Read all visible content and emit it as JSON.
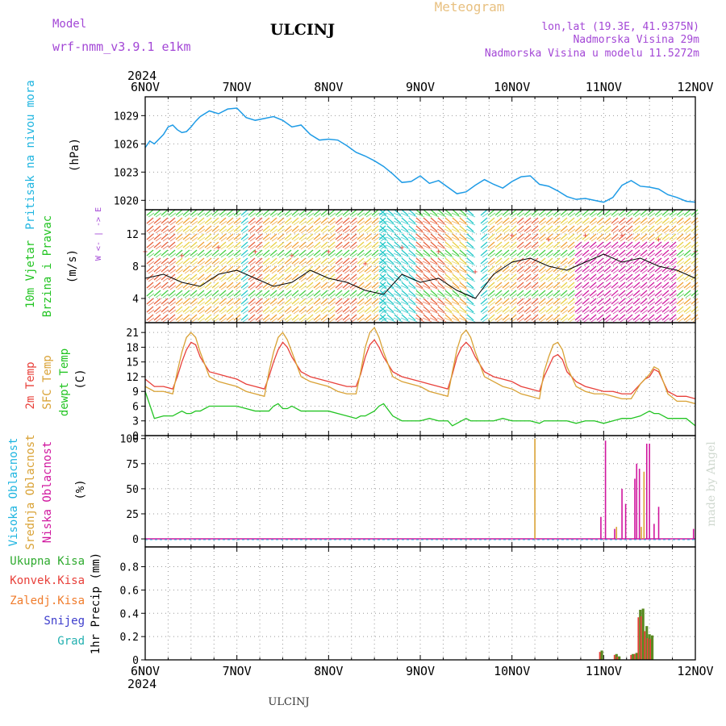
{
  "header": {
    "model_label": "Model",
    "model_name": "wrf-nmm_v3.9.1  e1km",
    "station": "ULCINJ",
    "product": "Meteogram",
    "coords": "lon,lat (19.3E, 41.9375N)",
    "elevation": "Nadmorska Visina 29m",
    "model_elevation": "Nadmorska Visina u modelu 11.5272m",
    "footer_station": "ULCINJ",
    "credit": "made by Angel"
  },
  "colors": {
    "pressure": "#1e9be6",
    "temp2m": "#e8403a",
    "sfc_temp": "#d9a235",
    "dewpt": "#22c422",
    "high_cloud": "#1fb5e0",
    "mid_cloud": "#d9a235",
    "low_cloud": "#d0169e",
    "precip_total": "#2eaa2e",
    "precip_conv": "#e8403a",
    "precip_strat": "#f07c2c",
    "snow": "#3c3ccc",
    "graupel": "#22b0b0",
    "model_text": "#a347d6"
  },
  "x_axis": {
    "year": "2024",
    "days": [
      "6NOV",
      "7NOV",
      "8NOV",
      "9NOV",
      "10NOV",
      "11NOV",
      "12NOV"
    ]
  },
  "chart_data": [
    {
      "type": "line",
      "name": "pressure",
      "ylabel_left": "Pritisak na nivou mora",
      "unit": "(hPa)",
      "ylim": [
        1019,
        1031
      ],
      "yticks": [
        1020,
        1023,
        1026,
        1029
      ],
      "x_days": [
        0,
        0.05,
        0.1,
        0.15,
        0.2,
        0.25,
        0.3,
        0.35,
        0.4,
        0.45,
        0.5,
        0.55,
        0.6,
        0.7,
        0.8,
        0.9,
        1.0,
        1.1,
        1.2,
        1.3,
        1.4,
        1.5,
        1.6,
        1.7,
        1.8,
        1.9,
        2.0,
        2.1,
        2.2,
        2.3,
        2.4,
        2.5,
        2.6,
        2.7,
        2.8,
        2.9,
        3.0,
        3.1,
        3.2,
        3.3,
        3.4,
        3.5,
        3.6,
        3.7,
        3.8,
        3.9,
        4.0,
        4.1,
        4.2,
        4.3,
        4.4,
        4.5,
        4.6,
        4.7,
        4.8,
        4.9,
        5.0,
        5.1,
        5.2,
        5.3,
        5.4,
        5.5,
        5.6,
        5.7,
        5.8,
        5.9,
        6.0
      ],
      "values": [
        1025.6,
        1026.3,
        1026.0,
        1026.5,
        1027.0,
        1027.8,
        1028.0,
        1027.5,
        1027.2,
        1027.3,
        1027.8,
        1028.4,
        1028.9,
        1029.5,
        1029.2,
        1029.7,
        1029.8,
        1028.8,
        1028.5,
        1028.7,
        1028.9,
        1028.5,
        1027.8,
        1028.0,
        1027.0,
        1026.4,
        1026.5,
        1026.4,
        1025.8,
        1025.1,
        1024.7,
        1024.2,
        1023.6,
        1022.8,
        1021.9,
        1022.0,
        1022.6,
        1021.8,
        1022.1,
        1021.4,
        1020.7,
        1020.9,
        1021.6,
        1022.2,
        1021.7,
        1021.3,
        1022.0,
        1022.5,
        1022.6,
        1021.7,
        1021.5,
        1021.0,
        1020.4,
        1020.1,
        1020.2,
        1020.0,
        1019.8,
        1020.3,
        1021.6,
        1022.1,
        1021.5,
        1021.4,
        1021.2,
        1020.6,
        1020.3,
        1019.9,
        1019.8
      ],
      "x_left_units": "days since 6NOV"
    },
    {
      "type": "line",
      "name": "wind",
      "ylabel_left": [
        "10m Vjetar",
        "Brzina i Pravac"
      ],
      "unit": "(m/s)",
      "ylim": [
        1,
        15
      ],
      "yticks": [
        4,
        8,
        12
      ],
      "compass": "W <- | -> E",
      "speed_x": [
        0,
        0.2,
        0.4,
        0.6,
        0.8,
        1.0,
        1.2,
        1.4,
        1.6,
        1.8,
        2.0,
        2.2,
        2.4,
        2.6,
        2.8,
        3.0,
        3.2,
        3.4,
        3.6,
        3.8,
        4.0,
        4.2,
        4.4,
        4.6,
        4.8,
        5.0,
        5.2,
        5.4,
        5.6,
        5.8,
        6.0
      ],
      "speed_values": [
        6.5,
        7.0,
        6.0,
        5.5,
        7.0,
        7.5,
        6.5,
        5.5,
        6.0,
        7.5,
        6.5,
        6.0,
        5.0,
        4.5,
        7.0,
        6.0,
        6.5,
        5.0,
        4.0,
        7.0,
        8.5,
        9.0,
        8.0,
        7.5,
        8.5,
        9.5,
        8.5,
        9.0,
        8.0,
        7.5,
        6.5
      ]
    },
    {
      "type": "line",
      "name": "temperature",
      "ylabel_left": [
        "2m Temp",
        "SFC Temp",
        "dewpt Temp"
      ],
      "unit": "(C)",
      "ylim": [
        0,
        23
      ],
      "yticks": [
        0,
        3,
        6,
        9,
        12,
        15,
        18,
        21
      ],
      "x": [
        0,
        0.1,
        0.2,
        0.3,
        0.35,
        0.4,
        0.45,
        0.5,
        0.55,
        0.6,
        0.7,
        0.8,
        0.9,
        1.0,
        1.1,
        1.2,
        1.3,
        1.35,
        1.4,
        1.45,
        1.5,
        1.55,
        1.6,
        1.7,
        1.8,
        1.9,
        2.0,
        2.1,
        2.2,
        2.3,
        2.35,
        2.4,
        2.45,
        2.5,
        2.55,
        2.6,
        2.7,
        2.8,
        2.9,
        3.0,
        3.1,
        3.2,
        3.3,
        3.35,
        3.4,
        3.45,
        3.5,
        3.55,
        3.6,
        3.7,
        3.8,
        3.9,
        4.0,
        4.1,
        4.2,
        4.3,
        4.35,
        4.4,
        4.45,
        4.5,
        4.55,
        4.6,
        4.7,
        4.8,
        4.9,
        5.0,
        5.1,
        5.2,
        5.3,
        5.4,
        5.45,
        5.5,
        5.55,
        5.6,
        5.7,
        5.8,
        5.9,
        6.0
      ],
      "series": [
        {
          "name": "2m Temp",
          "color_key": "temp2m",
          "values": [
            11.5,
            10,
            10,
            9.5,
            12,
            15,
            17.5,
            19,
            18.5,
            16,
            13,
            12.5,
            12,
            11.5,
            10.5,
            10,
            9.5,
            12,
            15,
            17.5,
            19,
            18,
            16,
            13,
            12,
            11.5,
            11,
            10.5,
            10,
            10,
            12.5,
            16,
            18.5,
            19.5,
            18,
            16,
            13,
            12,
            11.5,
            11,
            10.5,
            10,
            9.5,
            12.5,
            16,
            18,
            19,
            18,
            16,
            13,
            12,
            11.5,
            11,
            10,
            9.5,
            9,
            12,
            14,
            16,
            16.5,
            15.5,
            13,
            11,
            10,
            9.5,
            9,
            9,
            8.5,
            8.5,
            10.5,
            11.5,
            12,
            13.5,
            13,
            9,
            8,
            8,
            7.5
          ]
        },
        {
          "name": "SFC Temp",
          "color_key": "sfc_temp",
          "values": [
            10,
            9,
            9,
            8.5,
            13,
            17,
            20,
            21,
            20,
            17,
            12,
            11,
            10.5,
            10,
            9,
            8.5,
            8,
            13,
            17,
            20,
            21,
            19.5,
            17,
            12,
            11,
            10.5,
            10,
            9,
            8.5,
            8.5,
            13,
            18,
            21,
            22,
            20,
            17,
            12,
            11,
            10.5,
            10,
            9,
            8.5,
            8,
            13,
            17.5,
            20.5,
            21.5,
            20,
            17,
            12,
            11,
            10,
            9.5,
            8.5,
            8,
            7.5,
            13,
            16,
            18.5,
            19,
            17.5,
            14,
            10,
            9,
            8.5,
            8.5,
            8,
            7.5,
            7.5,
            10.5,
            11.5,
            12.5,
            14,
            13.5,
            8.5,
            7,
            7,
            6.5
          ]
        },
        {
          "name": "dewpt Temp",
          "color_key": "dewpt",
          "values": [
            9,
            3.5,
            4,
            4,
            4.5,
            5,
            4.5,
            4.5,
            5,
            5,
            6,
            6,
            6,
            6,
            5.5,
            5,
            5,
            5,
            6,
            6.5,
            5.5,
            5.5,
            6,
            5,
            5,
            5,
            5,
            4.5,
            4,
            3.5,
            4,
            4,
            4.5,
            5,
            6,
            6.5,
            4,
            3,
            3,
            3,
            3.5,
            3,
            3,
            2,
            2.5,
            3,
            3.5,
            3,
            3,
            3,
            3,
            3.5,
            3,
            3,
            3,
            2.5,
            3,
            3,
            3,
            3,
            3,
            3,
            2.5,
            3,
            3,
            2.5,
            3,
            3.5,
            3.5,
            4,
            4.5,
            5,
            4.5,
            4.5,
            3.5,
            3.5,
            3.5,
            2
          ]
        }
      ]
    },
    {
      "type": "bar",
      "name": "clouds",
      "ylabel_left": [
        "Visoka Oblacnost",
        "Srednja Oblacnost",
        "Niska Oblacnost"
      ],
      "unit": "(%)",
      "ylim": [
        -8,
        103
      ],
      "yticks": [
        0,
        25,
        50,
        75,
        100
      ],
      "bars": [
        {
          "x": 4.25,
          "value": 100,
          "color_key": "mid_cloud"
        },
        {
          "x": 4.97,
          "value": 22,
          "color_key": "low_cloud"
        },
        {
          "x": 5.02,
          "value": 98,
          "color_key": "low_cloud"
        },
        {
          "x": 5.12,
          "value": 10,
          "color_key": "low_cloud"
        },
        {
          "x": 5.14,
          "value": 12,
          "color_key": "mid_cloud"
        },
        {
          "x": 5.2,
          "value": 50,
          "color_key": "low_cloud"
        },
        {
          "x": 5.24,
          "value": 35,
          "color_key": "low_cloud"
        },
        {
          "x": 5.34,
          "value": 60,
          "color_key": "low_cloud"
        },
        {
          "x": 5.36,
          "value": 75,
          "color_key": "low_cloud"
        },
        {
          "x": 5.39,
          "value": 70,
          "color_key": "low_cloud"
        },
        {
          "x": 5.41,
          "value": 12,
          "color_key": "mid_cloud"
        },
        {
          "x": 5.44,
          "value": 67,
          "color_key": "mid_cloud"
        },
        {
          "x": 5.47,
          "value": 95,
          "color_key": "low_cloud"
        },
        {
          "x": 5.5,
          "value": 95,
          "color_key": "low_cloud"
        },
        {
          "x": 5.55,
          "value": 15,
          "color_key": "low_cloud"
        },
        {
          "x": 5.6,
          "value": 32,
          "color_key": "low_cloud"
        },
        {
          "x": 5.98,
          "value": 10,
          "color_key": "low_cloud"
        }
      ]
    },
    {
      "type": "bar",
      "name": "precip",
      "ylabel_left": [
        "Ukupna  Kisa",
        "Konvek.Kisa",
        "Zaledj.Kisa",
        "Snijeg",
        "Grad"
      ],
      "unit": "1hr Precip (mm)",
      "ylim": [
        0,
        0.97
      ],
      "yticks": [
        0,
        0.2,
        0.4,
        0.6,
        0.8
      ],
      "bars": [
        {
          "x": 4.98,
          "value": 0.08
        },
        {
          "x": 5.14,
          "value": 0.05
        },
        {
          "x": 5.17,
          "value": 0.03
        },
        {
          "x": 5.32,
          "value": 0.05
        },
        {
          "x": 5.36,
          "value": 0.06
        },
        {
          "x": 5.4,
          "value": 0.43
        },
        {
          "x": 5.43,
          "value": 0.44
        },
        {
          "x": 5.47,
          "value": 0.29
        },
        {
          "x": 5.5,
          "value": 0.22
        },
        {
          "x": 5.53,
          "value": 0.21
        }
      ]
    }
  ]
}
